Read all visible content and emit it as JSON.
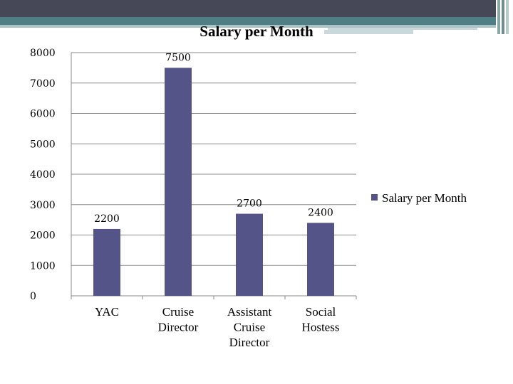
{
  "colors": {
    "bar": "#545488",
    "band_dark": "#464858",
    "band_teal": "#4f7f84",
    "band_light": "#a9c3c6",
    "grid": "#8a8a8a"
  },
  "chart_data": {
    "type": "bar",
    "title": "Salary per Month",
    "categories": [
      [
        "YAC"
      ],
      [
        "Cruise",
        "Director"
      ],
      [
        "Assistant",
        "Cruise",
        "Director"
      ],
      [
        "Social",
        "Hostess"
      ]
    ],
    "series": [
      {
        "name": "Salary per Month",
        "values": [
          2200,
          7500,
          2700,
          2400
        ]
      }
    ],
    "data_labels": [
      "2200",
      "7500",
      "2700",
      "2400"
    ],
    "y_ticks": [
      "0",
      "1000",
      "2000",
      "3000",
      "4000",
      "5000",
      "6000",
      "7000",
      "8000"
    ],
    "ylim": [
      0,
      8000
    ],
    "grid": true,
    "legend_position": "right"
  }
}
